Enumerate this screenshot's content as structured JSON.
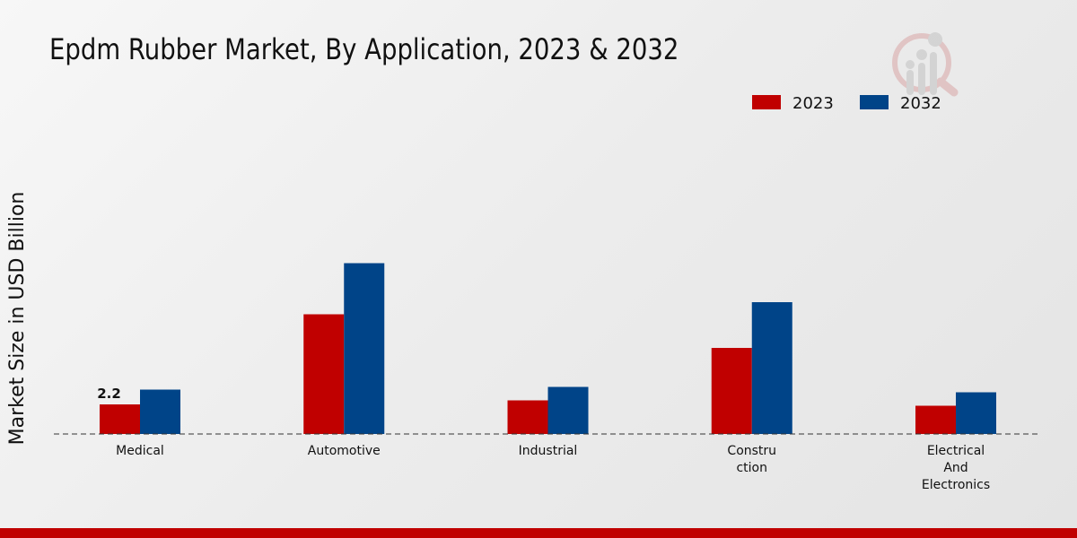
{
  "title": "Epdm Rubber Market, By Application, 2023 & 2032",
  "chart_data": {
    "type": "bar",
    "title": "Epdm Rubber Market, By Application, 2023 & 2032",
    "xlabel": "",
    "ylabel": "Market Size in USD Billion",
    "categories": [
      "Medical",
      "Automotive",
      "Industrial",
      "Constru ction",
      "Electrical And Electronics"
    ],
    "category_lines": [
      [
        "Medical"
      ],
      [
        "Automotive"
      ],
      [
        "Industrial"
      ],
      [
        "Constru",
        "ction"
      ],
      [
        "Electrical",
        "And",
        "Electronics"
      ]
    ],
    "series": [
      {
        "name": "2023",
        "color": "#c00000",
        "values": [
          2.2,
          8.9,
          2.5,
          6.4,
          2.1
        ]
      },
      {
        "name": "2032",
        "color": "#004488",
        "values": [
          3.3,
          12.7,
          3.5,
          9.8,
          3.1
        ]
      }
    ],
    "data_labels": [
      {
        "series": "2023",
        "category": "Medical",
        "text": "2.2"
      }
    ],
    "legend": "top-right",
    "grid": false,
    "ylim": [
      0,
      26
    ]
  }
}
